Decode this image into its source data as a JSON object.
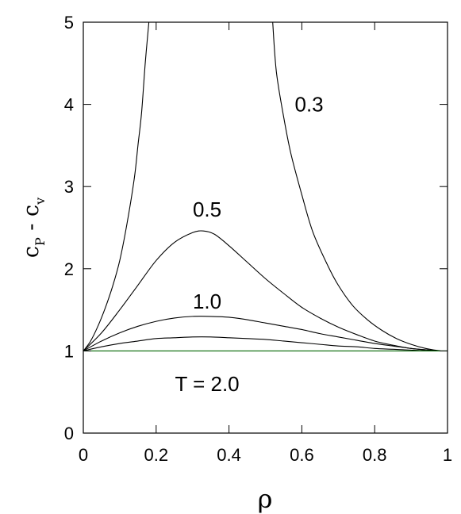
{
  "chart_data": {
    "type": "line",
    "title": "",
    "xlabel": "ρ",
    "ylabel": {
      "base1": "c",
      "sub1": "P",
      "dash": " - ",
      "base2": "c",
      "sub2": "v"
    },
    "xlim": [
      0,
      1
    ],
    "ylim": [
      0,
      5
    ],
    "xticks": [
      {
        "value": 0,
        "label": "0"
      },
      {
        "value": 0.2,
        "label": "0.2"
      },
      {
        "value": 0.4,
        "label": "0.4"
      },
      {
        "value": 0.6,
        "label": "0.6"
      },
      {
        "value": 0.8,
        "label": "0.8"
      },
      {
        "value": 1,
        "label": "1"
      }
    ],
    "yticks": [
      {
        "value": 0,
        "label": "0"
      },
      {
        "value": 1,
        "label": "1"
      },
      {
        "value": 2,
        "label": "2"
      },
      {
        "value": 3,
        "label": "3"
      },
      {
        "value": 4,
        "label": "4"
      },
      {
        "value": 5,
        "label": "5"
      }
    ],
    "grid": false,
    "series": [
      {
        "name": "0.3",
        "color": "#000000",
        "segments": [
          {
            "x": [
              0,
              0.02,
              0.04,
              0.06,
              0.08,
              0.1,
              0.12,
              0.14,
              0.15,
              0.16,
              0.17,
              0.18
            ],
            "y": [
              1.0,
              1.12,
              1.3,
              1.52,
              1.78,
              2.1,
              2.55,
              3.1,
              3.5,
              3.9,
              4.5,
              5.0
            ]
          },
          {
            "x": [
              0.52,
              0.53,
              0.55,
              0.57,
              0.6,
              0.63,
              0.67,
              0.7,
              0.74,
              0.78,
              0.82,
              0.86,
              0.9,
              0.94,
              0.98
            ],
            "y": [
              5.0,
              4.4,
              3.85,
              3.4,
              2.9,
              2.45,
              2.05,
              1.8,
              1.55,
              1.38,
              1.25,
              1.15,
              1.08,
              1.03,
              1.0
            ]
          }
        ],
        "label_pos": [
          0.62,
          4.0
        ]
      },
      {
        "name": "0.5",
        "color": "#000000",
        "x": [
          0,
          0.05,
          0.1,
          0.15,
          0.2,
          0.25,
          0.3,
          0.33,
          0.36,
          0.4,
          0.45,
          0.5,
          0.55,
          0.6,
          0.65,
          0.7,
          0.75,
          0.8,
          0.85,
          0.9,
          0.95,
          0.98
        ],
        "y": [
          1.0,
          1.22,
          1.5,
          1.8,
          2.1,
          2.32,
          2.44,
          2.46,
          2.42,
          2.28,
          2.08,
          1.88,
          1.7,
          1.53,
          1.4,
          1.29,
          1.2,
          1.12,
          1.07,
          1.03,
          1.01,
          1.0
        ],
        "label_pos": [
          0.34,
          2.72
        ]
      },
      {
        "name": "1.0",
        "color": "#000000",
        "x": [
          0,
          0.05,
          0.1,
          0.15,
          0.2,
          0.25,
          0.3,
          0.35,
          0.4,
          0.45,
          0.5,
          0.55,
          0.6,
          0.65,
          0.7,
          0.75,
          0.8,
          0.85,
          0.9,
          0.95,
          0.98
        ],
        "y": [
          1.0,
          1.12,
          1.22,
          1.3,
          1.36,
          1.4,
          1.42,
          1.42,
          1.41,
          1.38,
          1.34,
          1.3,
          1.26,
          1.21,
          1.17,
          1.13,
          1.09,
          1.06,
          1.03,
          1.01,
          1.0
        ],
        "label_pos": [
          0.34,
          1.6
        ]
      },
      {
        "name": "",
        "color": "#000000",
        "x": [
          0,
          0.05,
          0.1,
          0.15,
          0.2,
          0.25,
          0.3,
          0.35,
          0.4,
          0.45,
          0.5,
          0.55,
          0.6,
          0.65,
          0.7,
          0.75,
          0.8,
          0.85,
          0.9,
          0.95,
          0.98
        ],
        "y": [
          1.0,
          1.05,
          1.09,
          1.12,
          1.15,
          1.16,
          1.17,
          1.17,
          1.16,
          1.15,
          1.14,
          1.12,
          1.1,
          1.08,
          1.06,
          1.05,
          1.03,
          1.02,
          1.01,
          1.0,
          1.0
        ]
      },
      {
        "name": "T = 2.0",
        "color": "#006400",
        "x": [
          0,
          1
        ],
        "y": [
          1.0,
          1.0
        ],
        "label_pos": [
          0.34,
          0.6
        ]
      }
    ]
  }
}
